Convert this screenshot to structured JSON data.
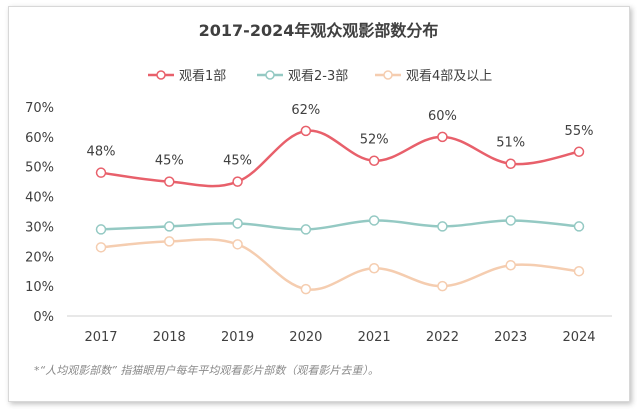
{
  "chart_data": {
    "type": "line",
    "title": "2017-2024年观众观影部数分布",
    "x": [
      "2017",
      "2018",
      "2019",
      "2020",
      "2021",
      "2022",
      "2023",
      "2024"
    ],
    "ylim": [
      0,
      70
    ],
    "yticks": [
      "0%",
      "10%",
      "20%",
      "30%",
      "40%",
      "50%",
      "60%",
      "70%"
    ],
    "series": [
      {
        "name": "观看1部",
        "color": "#e8606b",
        "values": [
          48,
          45,
          45,
          62,
          52,
          60,
          51,
          55
        ],
        "labels": [
          "48%",
          "45%",
          "45%",
          "62%",
          "52%",
          "60%",
          "51%",
          "55%"
        ]
      },
      {
        "name": "观看2-3部",
        "color": "#94c9c3",
        "values": [
          29,
          30,
          31,
          29,
          32,
          30,
          32,
          30
        ]
      },
      {
        "name": "观看4部及以上",
        "color": "#f5cdb0",
        "values": [
          23,
          25,
          24,
          9,
          16,
          10,
          17,
          15
        ]
      }
    ],
    "legend": "top",
    "grid": false
  },
  "footnote": "*“人均观影部数” 指猫眼用户每年平均观看影片部数（观看影片去重）。"
}
